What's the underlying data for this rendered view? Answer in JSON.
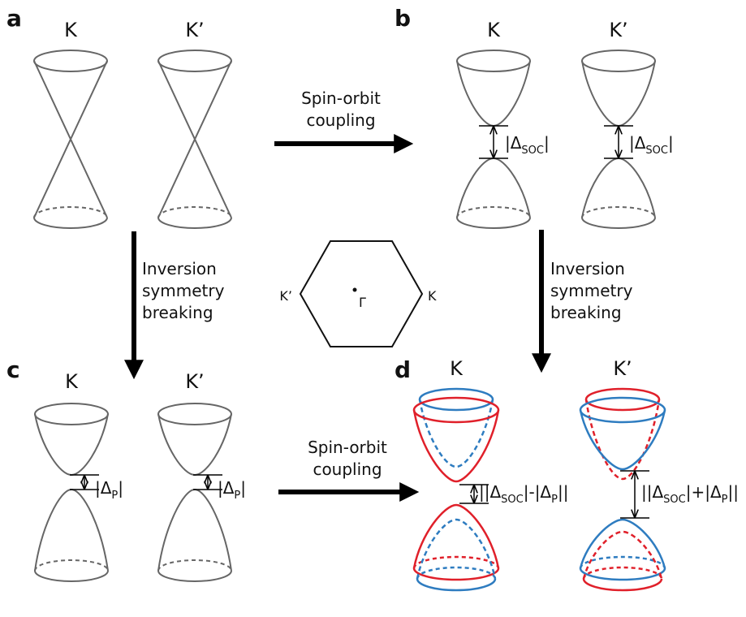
{
  "panel_labels": [
    "a",
    "b",
    "c",
    "d"
  ],
  "valley_labels": [
    [
      "K",
      "K’"
    ],
    [
      "K",
      "K’"
    ],
    [
      "K",
      "K’"
    ],
    [
      "K",
      "K’"
    ]
  ],
  "arrows": [
    {
      "lines": [
        "Spin-orbit",
        "coupling"
      ]
    },
    {
      "lines": [
        "Inversion",
        "symmetry",
        "breaking"
      ]
    },
    {
      "lines": [
        "Inversion",
        "symmetry",
        "breaking"
      ]
    },
    {
      "lines": [
        "Spin-orbit",
        "coupling"
      ]
    }
  ],
  "gaps": [
    [
      {
        "t": "|Δ"
      },
      {
        "t": "SOC",
        "sub": true
      },
      {
        "t": "|"
      }
    ],
    [
      {
        "t": "|Δ"
      },
      {
        "t": "SOC",
        "sub": true
      },
      {
        "t": "|"
      }
    ],
    [
      {
        "t": "|Δ"
      },
      {
        "t": "P",
        "sub": true
      },
      {
        "t": "|"
      }
    ],
    [
      {
        "t": "|Δ"
      },
      {
        "t": "P",
        "sub": true
      },
      {
        "t": "|"
      }
    ],
    [
      {
        "t": "||Δ"
      },
      {
        "t": "SOC",
        "sub": true
      },
      {
        "t": "|-|Δ"
      },
      {
        "t": "P",
        "sub": true
      },
      {
        "t": "||"
      }
    ],
    [
      {
        "t": "||Δ"
      },
      {
        "t": "SOC",
        "sub": true
      },
      {
        "t": "|+|Δ"
      },
      {
        "t": "P",
        "sub": true
      },
      {
        "t": "||"
      }
    ]
  ],
  "brillouin_zone": {
    "left": "K’",
    "center": "Γ",
    "right": "K"
  }
}
